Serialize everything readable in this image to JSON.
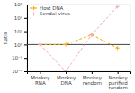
{
  "chart_data": {
    "type": "line",
    "categories": [
      "Monkey\nRNA",
      "Monkey\nDNA",
      "Monkey\nrandom",
      "Monkey\npurified\nrandom"
    ],
    "series": [
      {
        "name": "Host DNA",
        "color": "#f5a800",
        "marker": "+",
        "line_style": "dashed",
        "values": [
          1.0,
          1.0,
          30,
          0.3
        ]
      },
      {
        "name": "Sendai virus",
        "color": "#f0a8b8",
        "marker": "+",
        "line_style": "dashed",
        "values": [
          1.0,
          0.0001,
          30,
          500000
        ]
      }
    ],
    "reference_lines": [
      {
        "value": 1.0,
        "color": "#444444"
      }
    ],
    "ylabel": "Ratio",
    "log": "y",
    "ylim": [
      0.0001,
      1000000
    ],
    "yticks": [
      {
        "value": 0.0001,
        "label": "10⁻⁴"
      },
      {
        "value": 0.01,
        "label": "10⁻²"
      },
      {
        "value": 1,
        "label": "10⁰"
      },
      {
        "value": 100,
        "label": "10²"
      },
      {
        "value": 10000,
        "label": "10⁴"
      },
      {
        "value": 1000000,
        "label": "10⁶"
      }
    ],
    "grid": false,
    "legend": "upper left"
  }
}
